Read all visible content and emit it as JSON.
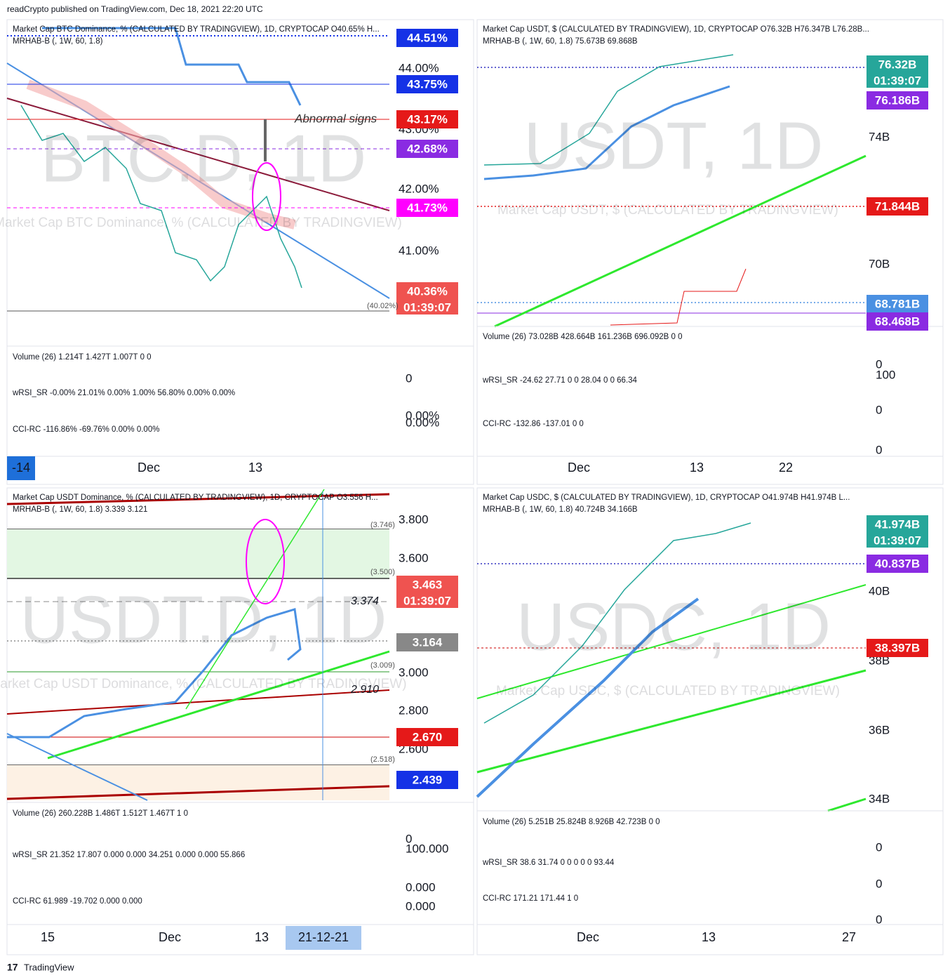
{
  "header": {
    "title": "readCrypto published on TradingView.com, Dec 18, 2021 22:20 UTC"
  },
  "footer": {
    "brand": "TradingView"
  },
  "panels": [
    {
      "legend": [
        "Market Cap BTC Dominance, % (CALCULATED BY TRADINGVIEW), 1D, CRYPTOCAP  O40.65%  H...",
        "MRHAB-B (, 1W, 60, 1.8)"
      ],
      "watermark": "BTC.D, 1D",
      "watermark_sub": "Market Cap BTC Dominance, % (CALCULATED BY TRADINGVIEW)",
      "annotation": "Abnormal signs",
      "axis_labels": [
        "44.00%",
        "43.00%",
        "42.00%",
        "41.00%"
      ],
      "badges": [
        {
          "text": "44.51%"
        },
        {
          "text": "43.75%"
        },
        {
          "text": "43.17%"
        },
        {
          "text": "42.68%"
        },
        {
          "text": "41.73%"
        },
        {
          "text": "40.36%",
          "sub": "01:39:07"
        }
      ],
      "line_labels": [
        "(40.02%)"
      ],
      "indicators": [
        {
          "legend": "Volume (26)  1.214T  1.427T  1.007T  0  0",
          "scale": [
            "0"
          ]
        },
        {
          "legend": "wRSI_SR  -0.00%  21.01%  0.00%  1.00%  56.80%  0.00%  0.00%",
          "scale": [
            "0.00%"
          ]
        },
        {
          "legend": "CCI-RC  -116.86%  -69.76%  0.00%  0.00%",
          "scale": [
            "0.00%"
          ]
        }
      ],
      "time_labels": [
        "Dec",
        "13"
      ],
      "time_badge": "-14"
    },
    {
      "legend": [
        "Market Cap USDT, $ (CALCULATED BY TRADINGVIEW), 1D, CRYPTOCAP  O76.32B  H76.347B  L76.28B...",
        "MRHAB-B (, 1W, 60, 1.8)  75.673B  69.868B"
      ],
      "watermark": "USDT, 1D",
      "watermark_sub": "Market Cap USDT, $ (CALCULATED BY TRADINGVIEW)",
      "axis_labels": [
        "74B",
        "70B"
      ],
      "badges": [
        {
          "text": "76.32B",
          "sub": "01:39:07"
        },
        {
          "text": "76.186B"
        },
        {
          "text": "71.844B"
        },
        {
          "text": "68.781B"
        },
        {
          "text": "68.468B"
        }
      ],
      "indicators": [
        {
          "legend": "Volume (26)  73.028B  428.664B  161.236B  696.092B  0  0",
          "scale": [
            "0"
          ]
        },
        {
          "legend": "wRSI_SR  -24.62  27.71  0  0  28.04  0  0  66.34",
          "scale": [
            "100",
            "0"
          ]
        },
        {
          "legend": "CCI-RC  -132.86  -137.01  0  0",
          "scale": [
            "0"
          ]
        }
      ],
      "time_labels": [
        "Dec",
        "13",
        "22"
      ]
    },
    {
      "legend": [
        "Market Cap USDT Dominance, % (CALCULATED BY TRADINGVIEW), 1D, CRYPTOCAP  O3.556  H...",
        "MRHAB-B (, 1W, 60, 1.8)  3.339  3.121"
      ],
      "watermark": "USDT.D, 1D",
      "watermark_sub": "Market Cap USDT Dominance, % (CALCULATED BY TRADINGVIEW)",
      "axis_labels": [
        "3.800",
        "3.600",
        "3.000",
        "2.800",
        "2.600"
      ],
      "badges": [
        {
          "text": "3.463",
          "sub": "01:39:07"
        },
        {
          "text": "3.164"
        },
        {
          "text": "2.670"
        },
        {
          "text": "2.439"
        }
      ],
      "line_labels": [
        "(3.746)",
        "(3.500)",
        "3.374",
        "(3.009)",
        "2.910",
        "(2.518)"
      ],
      "indicators": [
        {
          "legend": "Volume (26)  260.228B  1.486T  1.512T  1.467T  1  0",
          "scale": [
            "0"
          ]
        },
        {
          "legend": "wRSI_SR  21.352  17.807  0.000  0.000  34.251  0.000  0.000  55.866",
          "scale": [
            "100.000",
            "0.000"
          ]
        },
        {
          "legend": "CCI-RC  61.989  -19.702  0.000  0.000",
          "scale": [
            "0.000"
          ]
        }
      ],
      "time_labels": [
        "15",
        "Dec",
        "13"
      ],
      "time_badge": "21-12-21"
    },
    {
      "legend": [
        "Market Cap USDC, $ (CALCULATED BY TRADINGVIEW), 1D, CRYPTOCAP  O41.974B  H41.974B  L...",
        "MRHAB-B (, 1W, 60, 1.8)  40.724B  34.166B"
      ],
      "watermark": "USDC, 1D",
      "watermark_sub": "Market Cap USDC, $ (CALCULATED BY TRADINGVIEW)",
      "axis_labels": [
        "40B",
        "38B",
        "36B",
        "34B"
      ],
      "badges": [
        {
          "text": "41.974B",
          "sub": "01:39:07"
        },
        {
          "text": "40.837B"
        },
        {
          "text": "38.397B"
        }
      ],
      "indicators": [
        {
          "legend": "Volume (26)  5.251B  25.824B  8.926B  42.723B  0  0",
          "scale": [
            "0"
          ]
        },
        {
          "legend": "wRSI_SR  38.6  31.74  0  0  0  0  0  93.44",
          "scale": [
            "0"
          ]
        },
        {
          "legend": "CCI-RC  171.21  171.44  1  0",
          "scale": [
            "0"
          ]
        }
      ],
      "time_labels": [
        "Dec",
        "13",
        "27"
      ]
    }
  ]
}
